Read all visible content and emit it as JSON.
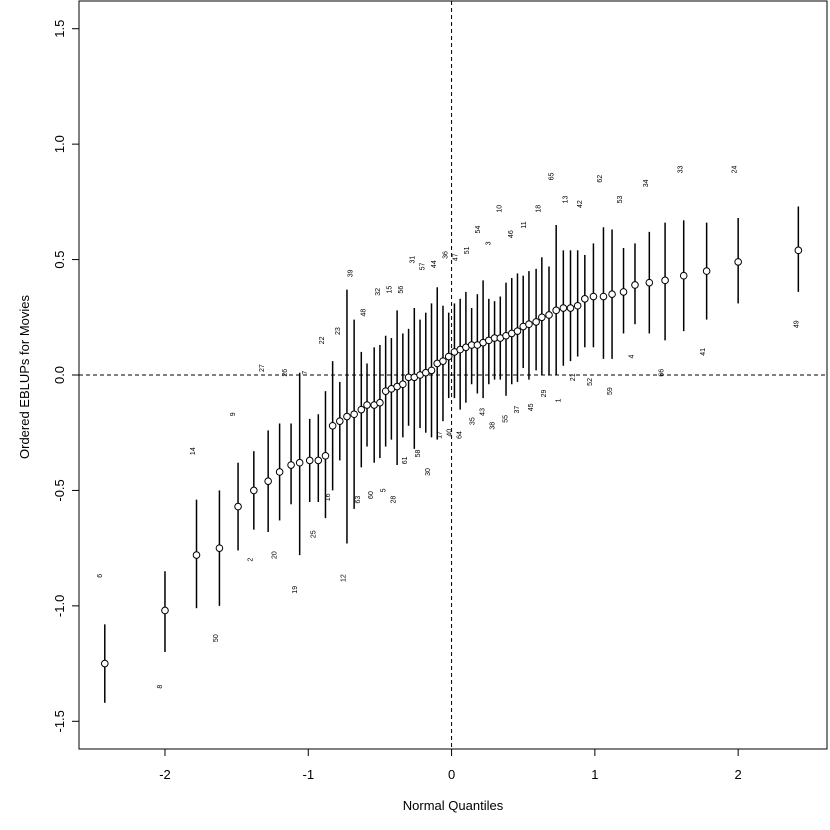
{
  "chart_data": {
    "type": "scatter",
    "xlabel": "Normal Quantiles",
    "ylabel": "Ordered EBLUPs for Movies",
    "xlim": [
      -2.6,
      2.62
    ],
    "ylim": [
      -1.62,
      1.62
    ],
    "x_ticks": [
      "-2",
      "-1",
      "0",
      "1",
      "2"
    ],
    "y_ticks": [
      "-1.5",
      "-1.0",
      "-0.5",
      "0.0",
      "0.5",
      "1.0",
      "1.5"
    ],
    "ref_lines": {
      "x": 0,
      "y": 0,
      "style": "dashed"
    },
    "grid": false,
    "legend": "none",
    "colors": {
      "ink": "#000000",
      "background": "#ffffff"
    },
    "points": [
      {
        "x": -2.42,
        "y": -1.25,
        "lo": -1.42,
        "hi": -1.08
      },
      {
        "x": -2.0,
        "y": -1.02,
        "lo": -1.2,
        "hi": -0.85
      },
      {
        "x": -1.78,
        "y": -0.78,
        "lo": -1.01,
        "hi": -0.54
      },
      {
        "x": -1.62,
        "y": -0.75,
        "lo": -1.0,
        "hi": -0.5
      },
      {
        "x": -1.49,
        "y": -0.57,
        "lo": -0.76,
        "hi": -0.38
      },
      {
        "x": -1.38,
        "y": -0.5,
        "lo": -0.67,
        "hi": -0.33
      },
      {
        "x": -1.28,
        "y": -0.46,
        "lo": -0.68,
        "hi": -0.24
      },
      {
        "x": -1.2,
        "y": -0.42,
        "lo": -0.63,
        "hi": -0.21
      },
      {
        "x": -1.12,
        "y": -0.39,
        "lo": -0.56,
        "hi": -0.21
      },
      {
        "x": -1.06,
        "y": -0.38,
        "lo": -0.78,
        "hi": 0.01
      },
      {
        "x": -0.99,
        "y": -0.37,
        "lo": -0.55,
        "hi": -0.19
      },
      {
        "x": -0.93,
        "y": -0.37,
        "lo": -0.55,
        "hi": -0.17
      },
      {
        "x": -0.88,
        "y": -0.35,
        "lo": -0.62,
        "hi": -0.07
      },
      {
        "x": -0.83,
        "y": -0.22,
        "lo": -0.5,
        "hi": 0.06
      },
      {
        "x": -0.78,
        "y": -0.2,
        "lo": -0.37,
        "hi": -0.03
      },
      {
        "x": -0.73,
        "y": -0.18,
        "lo": -0.73,
        "hi": 0.37
      },
      {
        "x": -0.68,
        "y": -0.17,
        "lo": -0.58,
        "hi": 0.24
      },
      {
        "x": -0.63,
        "y": -0.15,
        "lo": -0.4,
        "hi": 0.1
      },
      {
        "x": -0.59,
        "y": -0.13,
        "lo": -0.31,
        "hi": 0.05
      },
      {
        "x": -0.54,
        "y": -0.13,
        "lo": -0.38,
        "hi": 0.12
      },
      {
        "x": -0.5,
        "y": -0.12,
        "lo": -0.36,
        "hi": 0.13
      },
      {
        "x": -0.46,
        "y": -0.07,
        "lo": -0.31,
        "hi": 0.17
      },
      {
        "x": -0.42,
        "y": -0.06,
        "lo": -0.28,
        "hi": 0.16
      },
      {
        "x": -0.38,
        "y": -0.05,
        "lo": -0.39,
        "hi": 0.28
      },
      {
        "x": -0.34,
        "y": -0.04,
        "lo": -0.27,
        "hi": 0.18
      },
      {
        "x": -0.3,
        "y": -0.01,
        "lo": -0.22,
        "hi": 0.2
      },
      {
        "x": -0.26,
        "y": -0.01,
        "lo": -0.32,
        "hi": 0.29
      },
      {
        "x": -0.22,
        "y": 0.0,
        "lo": -0.23,
        "hi": 0.24
      },
      {
        "x": -0.18,
        "y": 0.01,
        "lo": -0.25,
        "hi": 0.27
      },
      {
        "x": -0.14,
        "y": 0.02,
        "lo": -0.27,
        "hi": 0.31
      },
      {
        "x": -0.1,
        "y": 0.05,
        "lo": -0.28,
        "hi": 0.38
      },
      {
        "x": -0.06,
        "y": 0.06,
        "lo": -0.2,
        "hi": 0.3
      },
      {
        "x": -0.02,
        "y": 0.08,
        "lo": -0.1,
        "hi": 0.27
      },
      {
        "x": 0.02,
        "y": 0.1,
        "lo": -0.1,
        "hi": 0.31
      },
      {
        "x": 0.06,
        "y": 0.11,
        "lo": -0.15,
        "hi": 0.33
      },
      {
        "x": 0.1,
        "y": 0.12,
        "lo": -0.12,
        "hi": 0.36
      },
      {
        "x": 0.14,
        "y": 0.13,
        "lo": -0.04,
        "hi": 0.29
      },
      {
        "x": 0.18,
        "y": 0.13,
        "lo": -0.08,
        "hi": 0.35
      },
      {
        "x": 0.22,
        "y": 0.14,
        "lo": -0.1,
        "hi": 0.41
      },
      {
        "x": 0.26,
        "y": 0.15,
        "lo": -0.04,
        "hi": 0.33
      },
      {
        "x": 0.3,
        "y": 0.16,
        "lo": -0.02,
        "hi": 0.32
      },
      {
        "x": 0.34,
        "y": 0.16,
        "lo": -0.02,
        "hi": 0.34
      },
      {
        "x": 0.38,
        "y": 0.17,
        "lo": -0.09,
        "hi": 0.4
      },
      {
        "x": 0.42,
        "y": 0.18,
        "lo": -0.04,
        "hi": 0.42
      },
      {
        "x": 0.46,
        "y": 0.19,
        "lo": -0.03,
        "hi": 0.44
      },
      {
        "x": 0.5,
        "y": 0.21,
        "lo": 0.03,
        "hi": 0.43
      },
      {
        "x": 0.54,
        "y": 0.22,
        "lo": -0.02,
        "hi": 0.45
      },
      {
        "x": 0.59,
        "y": 0.23,
        "lo": 0.02,
        "hi": 0.46
      },
      {
        "x": 0.63,
        "y": 0.25,
        "lo": 0.0,
        "hi": 0.51
      },
      {
        "x": 0.68,
        "y": 0.26,
        "lo": 0.0,
        "hi": 0.47
      },
      {
        "x": 0.73,
        "y": 0.28,
        "lo": 0.0,
        "hi": 0.65
      },
      {
        "x": 0.78,
        "y": 0.29,
        "lo": 0.04,
        "hi": 0.54
      },
      {
        "x": 0.83,
        "y": 0.29,
        "lo": 0.06,
        "hi": 0.54
      },
      {
        "x": 0.88,
        "y": 0.3,
        "lo": 0.08,
        "hi": 0.54
      },
      {
        "x": 0.93,
        "y": 0.33,
        "lo": 0.12,
        "hi": 0.52
      },
      {
        "x": 0.99,
        "y": 0.34,
        "lo": 0.12,
        "hi": 0.57
      },
      {
        "x": 1.06,
        "y": 0.34,
        "lo": 0.07,
        "hi": 0.64
      },
      {
        "x": 1.12,
        "y": 0.35,
        "lo": 0.07,
        "hi": 0.63
      },
      {
        "x": 1.2,
        "y": 0.36,
        "lo": 0.18,
        "hi": 0.55
      },
      {
        "x": 1.28,
        "y": 0.39,
        "lo": 0.22,
        "hi": 0.57
      },
      {
        "x": 1.38,
        "y": 0.4,
        "lo": 0.18,
        "hi": 0.62
      },
      {
        "x": 1.49,
        "y": 0.41,
        "lo": 0.15,
        "hi": 0.66
      },
      {
        "x": 1.62,
        "y": 0.43,
        "lo": 0.19,
        "hi": 0.67
      },
      {
        "x": 1.78,
        "y": 0.45,
        "lo": 0.24,
        "hi": 0.66
      },
      {
        "x": 2.0,
        "y": 0.49,
        "lo": 0.31,
        "hi": 0.68
      },
      {
        "x": 2.42,
        "y": 0.54,
        "lo": 0.36,
        "hi": 0.73
      }
    ],
    "labels": [
      {
        "text": "6",
        "x": -2.44,
        "y": -0.87
      },
      {
        "text": "8",
        "x": -2.02,
        "y": -1.35
      },
      {
        "text": "50",
        "x": -1.63,
        "y": -1.14
      },
      {
        "text": "14",
        "x": -1.79,
        "y": -0.33
      },
      {
        "text": "2",
        "x": -1.39,
        "y": -0.8
      },
      {
        "text": "9",
        "x": -1.51,
        "y": -0.17
      },
      {
        "text": "20",
        "x": -1.22,
        "y": -0.78
      },
      {
        "text": "27",
        "x": -1.31,
        "y": 0.03
      },
      {
        "text": "19",
        "x": -1.08,
        "y": -0.93
      },
      {
        "text": "26",
        "x": -1.15,
        "y": 0.01
      },
      {
        "text": "25",
        "x": -0.95,
        "y": -0.69
      },
      {
        "text": "7",
        "x": -1.01,
        "y": 0.01
      },
      {
        "text": "16",
        "x": -0.85,
        "y": -0.53
      },
      {
        "text": "22",
        "x": -0.89,
        "y": 0.15
      },
      {
        "text": "12",
        "x": -0.74,
        "y": -0.88
      },
      {
        "text": "23",
        "x": -0.78,
        "y": 0.19
      },
      {
        "text": "39",
        "x": -0.69,
        "y": 0.44
      },
      {
        "text": "63",
        "x": -0.64,
        "y": -0.54
      },
      {
        "text": "48",
        "x": -0.6,
        "y": 0.27
      },
      {
        "text": "60",
        "x": -0.55,
        "y": -0.52
      },
      {
        "text": "32",
        "x": -0.5,
        "y": 0.36
      },
      {
        "text": "5",
        "x": -0.46,
        "y": -0.5
      },
      {
        "text": "15",
        "x": -0.42,
        "y": 0.37
      },
      {
        "text": "28",
        "x": -0.39,
        "y": -0.54
      },
      {
        "text": "56",
        "x": -0.34,
        "y": 0.37
      },
      {
        "text": "61",
        "x": -0.31,
        "y": -0.37
      },
      {
        "text": "31",
        "x": -0.26,
        "y": 0.5
      },
      {
        "text": "58",
        "x": -0.22,
        "y": -0.34
      },
      {
        "text": "57",
        "x": -0.19,
        "y": 0.47
      },
      {
        "text": "30",
        "x": -0.15,
        "y": -0.42
      },
      {
        "text": "44",
        "x": -0.11,
        "y": 0.48
      },
      {
        "text": "17",
        "x": -0.07,
        "y": -0.26
      },
      {
        "text": "36",
        "x": -0.03,
        "y": 0.52
      },
      {
        "text": "40",
        "x": 0.0,
        "y": -0.25
      },
      {
        "text": "47",
        "x": 0.04,
        "y": 0.51
      },
      {
        "text": "64",
        "x": 0.07,
        "y": -0.26
      },
      {
        "text": "51",
        "x": 0.12,
        "y": 0.54
      },
      {
        "text": "35",
        "x": 0.16,
        "y": -0.2
      },
      {
        "text": "54",
        "x": 0.2,
        "y": 0.63
      },
      {
        "text": "43",
        "x": 0.23,
        "y": -0.16
      },
      {
        "text": "3",
        "x": 0.27,
        "y": 0.57
      },
      {
        "text": "38",
        "x": 0.3,
        "y": -0.22
      },
      {
        "text": "10",
        "x": 0.35,
        "y": 0.72
      },
      {
        "text": "55",
        "x": 0.39,
        "y": -0.19
      },
      {
        "text": "46",
        "x": 0.43,
        "y": 0.61
      },
      {
        "text": "37",
        "x": 0.47,
        "y": -0.15
      },
      {
        "text": "11",
        "x": 0.52,
        "y": 0.65
      },
      {
        "text": "45",
        "x": 0.57,
        "y": -0.14
      },
      {
        "text": "18",
        "x": 0.62,
        "y": 0.72
      },
      {
        "text": "29",
        "x": 0.66,
        "y": -0.08
      },
      {
        "text": "65",
        "x": 0.71,
        "y": 0.86
      },
      {
        "text": "1",
        "x": 0.76,
        "y": -0.11
      },
      {
        "text": "13",
        "x": 0.81,
        "y": 0.76
      },
      {
        "text": "21",
        "x": 0.86,
        "y": -0.01
      },
      {
        "text": "42",
        "x": 0.91,
        "y": 0.74
      },
      {
        "text": "52",
        "x": 0.98,
        "y": -0.03
      },
      {
        "text": "62",
        "x": 1.05,
        "y": 0.85
      },
      {
        "text": "59",
        "x": 1.12,
        "y": -0.07
      },
      {
        "text": "53",
        "x": 1.19,
        "y": 0.76
      },
      {
        "text": "4",
        "x": 1.27,
        "y": 0.08
      },
      {
        "text": "34",
        "x": 1.37,
        "y": 0.83
      },
      {
        "text": "66",
        "x": 1.48,
        "y": 0.01
      },
      {
        "text": "33",
        "x": 1.61,
        "y": 0.89
      },
      {
        "text": "41",
        "x": 1.77,
        "y": 0.1
      },
      {
        "text": "24",
        "x": 1.99,
        "y": 0.89
      },
      {
        "text": "49",
        "x": 2.42,
        "y": 0.22
      }
    ]
  }
}
